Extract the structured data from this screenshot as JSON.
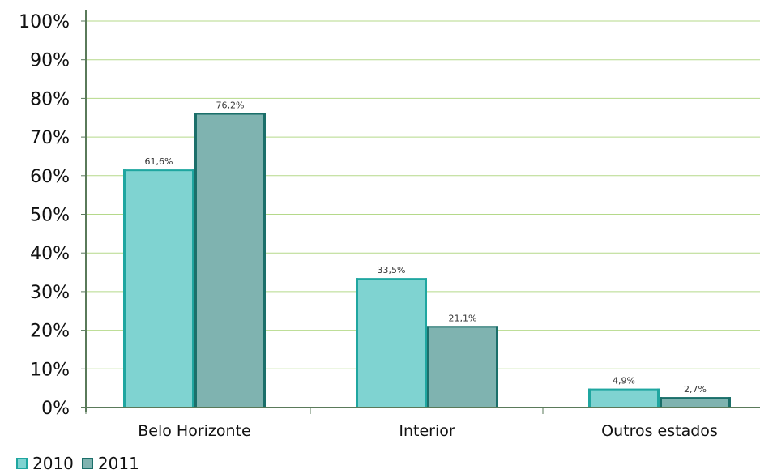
{
  "chart_data": {
    "type": "bar",
    "categories": [
      "Belo Horizonte",
      "Interior",
      "Outros estados"
    ],
    "series": [
      {
        "name": "2010",
        "values": [
          61.6,
          33.5,
          4.9
        ],
        "labels": [
          "61,6%",
          "33,5%",
          "4,9%"
        ],
        "fill": "#7fd3d1",
        "edge": "#1fa6a0"
      },
      {
        "name": "2011",
        "values": [
          76.2,
          21.1,
          2.7
        ],
        "labels": [
          "76,2%",
          "21,1%",
          "2,7%"
        ],
        "fill": "#7fb3b0",
        "edge": "#1b6f6a"
      }
    ],
    "ylim": [
      0,
      100
    ],
    "yticks": [
      0,
      10,
      20,
      30,
      40,
      50,
      60,
      70,
      80,
      90,
      100
    ],
    "ytick_labels": [
      "0%",
      "10%",
      "20%",
      "30%",
      "40%",
      "50%",
      "60%",
      "70%",
      "80%",
      "90%",
      "100%"
    ],
    "grid": true,
    "grid_color": "#b5d98a",
    "axis_color": "#5a7a5a",
    "legend_position": "bottom-left"
  }
}
